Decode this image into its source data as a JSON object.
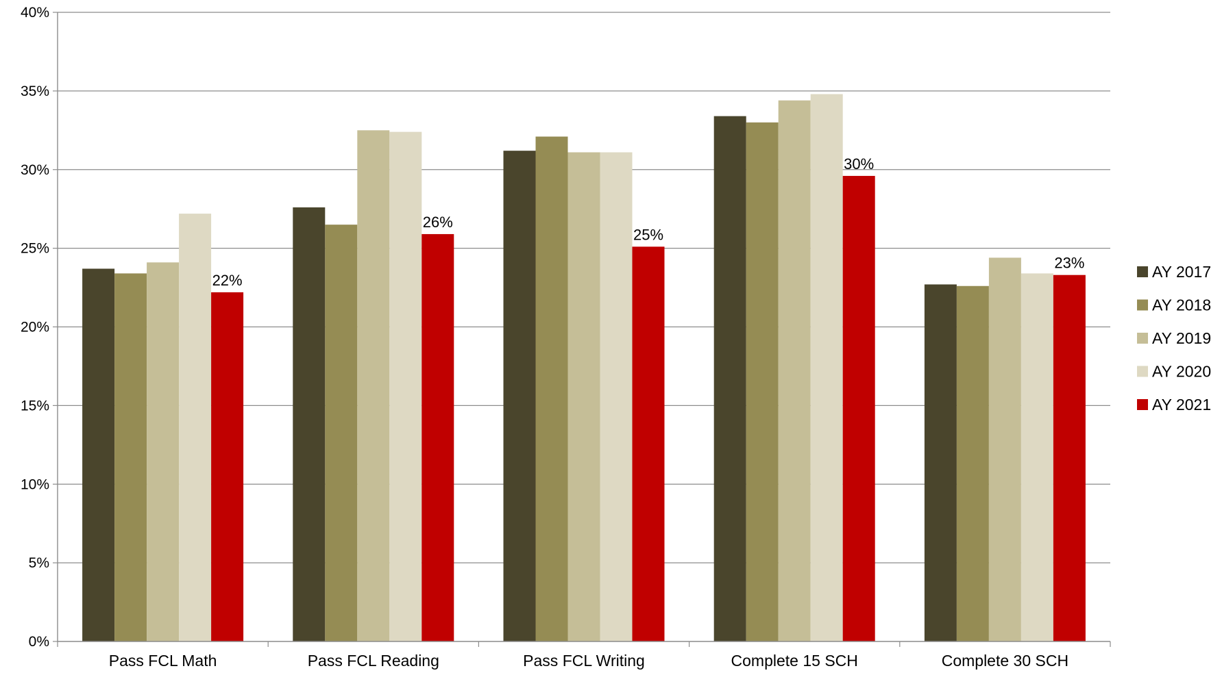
{
  "chart_data": {
    "type": "bar",
    "title": "",
    "xlabel": "",
    "ylabel": "",
    "categories": [
      "Pass FCL Math",
      "Pass FCL Reading",
      "Pass FCL Writing",
      "Complete 15 SCH",
      "Complete 30 SCH"
    ],
    "series": [
      {
        "name": "AY 2017",
        "color": "#4a452c",
        "values": [
          23.7,
          27.6,
          31.2,
          33.4,
          22.7
        ]
      },
      {
        "name": "AY 2018",
        "color": "#958c54",
        "values": [
          23.4,
          26.5,
          32.1,
          33.0,
          22.6
        ]
      },
      {
        "name": "AY 2019",
        "color": "#c5be97",
        "values": [
          24.1,
          32.5,
          31.1,
          34.4,
          24.4
        ]
      },
      {
        "name": "AY 2020",
        "color": "#ded9c3",
        "values": [
          27.2,
          32.4,
          31.1,
          34.8,
          23.4
        ]
      },
      {
        "name": "AY 2021",
        "color": "#c00000",
        "values": [
          22.2,
          25.9,
          25.1,
          29.6,
          23.3
        ]
      }
    ],
    "data_labels": {
      "series": "AY 2021",
      "texts": [
        "22%",
        "26%",
        "25%",
        "30%",
        "23%"
      ]
    },
    "y_axis": {
      "min": 0,
      "max": 40,
      "step": 5,
      "tick_labels": [
        "0%",
        "5%",
        "10%",
        "15%",
        "20%",
        "25%",
        "30%",
        "35%",
        "40%"
      ]
    },
    "grid": true,
    "legend_position": "right"
  }
}
